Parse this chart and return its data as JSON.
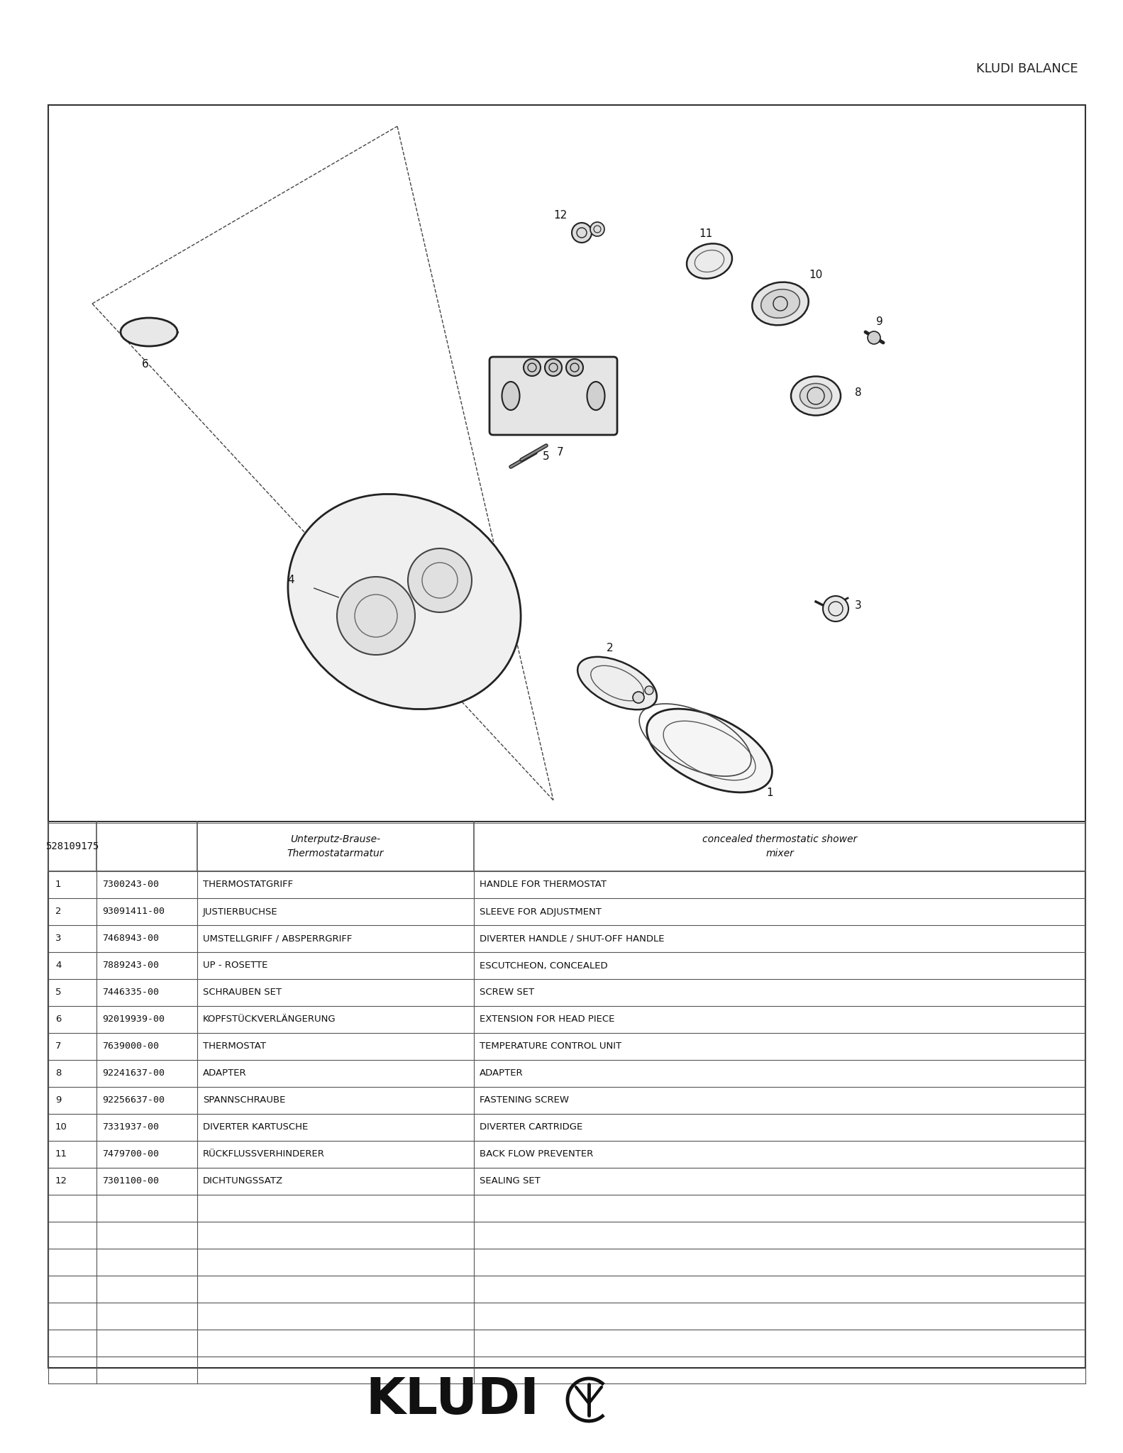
{
  "title": "KLUDI BALANCE",
  "bg_color": "#ffffff",
  "border_color": "#333333",
  "table_border_color": "#555555",
  "header_row": {
    "part_number": "528109175",
    "german": "Unterputz-Brause-\nThermostatarmatur",
    "english": "concealed thermostatic shower\nmixer"
  },
  "parts": [
    {
      "num": 1,
      "code": "7300243-00",
      "german": "THERMOSTATGRIFF",
      "english": "HANDLE FOR THERMOSTAT"
    },
    {
      "num": 2,
      "code": "93091411-00",
      "german": "JUSTIERBUCHSE",
      "english": "SLEEVE FOR ADJUSTMENT"
    },
    {
      "num": 3,
      "code": "7468943-00",
      "german": "UMSTELLGRIFF / ABSPERRGRIFF",
      "english": "DIVERTER HANDLE / SHUT-OFF HANDLE"
    },
    {
      "num": 4,
      "code": "7889243-00",
      "german": "UP - ROSETTE",
      "english": "ESCUTCHEON, CONCEALED"
    },
    {
      "num": 5,
      "code": "7446335-00",
      "german": "SCHRAUBEN SET",
      "english": "SCREW SET"
    },
    {
      "num": 6,
      "code": "92019939-00",
      "german": "KOPFSTÜCKVERLÄNGERUNG",
      "english": "EXTENSION FOR HEAD PIECE"
    },
    {
      "num": 7,
      "code": "7639000-00",
      "german": "THERMOSTAT",
      "english": "TEMPERATURE CONTROL UNIT"
    },
    {
      "num": 8,
      "code": "92241637-00",
      "german": "ADAPTER",
      "english": "ADAPTER"
    },
    {
      "num": 9,
      "code": "92256637-00",
      "german": "SPANNSCHRAUBE",
      "english": "FASTENING SCREW"
    },
    {
      "num": 10,
      "code": "7331937-00",
      "german": "DIVERTER KARTUSCHE",
      "english": "DIVERTER CARTRIDGE"
    },
    {
      "num": 11,
      "code": "7479700-00",
      "german": "RÜCKFLUSSVERHINDERER",
      "english": "BACK FLOW PREVENTER"
    },
    {
      "num": 12,
      "code": "7301100-00",
      "german": "DICHTUNGSSATZ",
      "english": "SEALING SET"
    }
  ],
  "empty_rows": 7,
  "logo_text": "KLUDI",
  "logo_symbol": "Ψ",
  "fig_width": 15.83,
  "fig_height": 20.48,
  "dpi": 100
}
